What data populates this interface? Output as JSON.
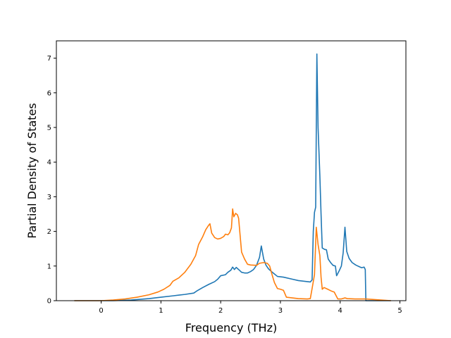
{
  "chart_data": {
    "type": "line",
    "title": "",
    "xlabel": "Frequency (THz)",
    "ylabel": "Partial Density of States",
    "xlim": [
      -0.75,
      5.1
    ],
    "ylim": [
      0,
      7.5
    ],
    "xticks": [
      0,
      1,
      2,
      3,
      4,
      5
    ],
    "xtick_labels": [
      "0",
      "1",
      "2",
      "3",
      "4",
      "5"
    ],
    "yticks": [
      0,
      1,
      2,
      3,
      4,
      5,
      6,
      7
    ],
    "ytick_labels": [
      "0",
      "1",
      "2",
      "3",
      "4",
      "5",
      "6",
      "7"
    ],
    "grid": false,
    "legend": false,
    "series": [
      {
        "color": "#1f77b4",
        "points": [
          [
            -0.45,
            0
          ],
          [
            0.2,
            0.0
          ],
          [
            0.5,
            0.02
          ],
          [
            0.8,
            0.06
          ],
          [
            1.0,
            0.1
          ],
          [
            1.2,
            0.14
          ],
          [
            1.4,
            0.18
          ],
          [
            1.55,
            0.22
          ],
          [
            1.6,
            0.28
          ],
          [
            1.7,
            0.38
          ],
          [
            1.8,
            0.47
          ],
          [
            1.9,
            0.55
          ],
          [
            1.95,
            0.62
          ],
          [
            2.0,
            0.72
          ],
          [
            2.08,
            0.75
          ],
          [
            2.12,
            0.82
          ],
          [
            2.17,
            0.88
          ],
          [
            2.2,
            0.97
          ],
          [
            2.23,
            0.9
          ],
          [
            2.26,
            0.96
          ],
          [
            2.3,
            0.9
          ],
          [
            2.35,
            0.82
          ],
          [
            2.4,
            0.8
          ],
          [
            2.45,
            0.8
          ],
          [
            2.5,
            0.84
          ],
          [
            2.55,
            0.9
          ],
          [
            2.6,
            1.02
          ],
          [
            2.65,
            1.25
          ],
          [
            2.68,
            1.58
          ],
          [
            2.72,
            1.2
          ],
          [
            2.76,
            1.02
          ],
          [
            2.8,
            0.92
          ],
          [
            2.85,
            0.84
          ],
          [
            2.9,
            0.77
          ],
          [
            2.95,
            0.7
          ],
          [
            3.05,
            0.68
          ],
          [
            3.2,
            0.62
          ],
          [
            3.3,
            0.58
          ],
          [
            3.4,
            0.56
          ],
          [
            3.5,
            0.54
          ],
          [
            3.53,
            0.6
          ],
          [
            3.55,
            2.0
          ],
          [
            3.57,
            2.55
          ],
          [
            3.59,
            2.7
          ],
          [
            3.61,
            7.12
          ],
          [
            3.63,
            5.0
          ],
          [
            3.66,
            3.6
          ],
          [
            3.68,
            2.5
          ],
          [
            3.7,
            1.52
          ],
          [
            3.74,
            1.48
          ],
          [
            3.77,
            1.47
          ],
          [
            3.8,
            1.2
          ],
          [
            3.84,
            1.1
          ],
          [
            3.88,
            1.02
          ],
          [
            3.92,
            1.0
          ],
          [
            3.94,
            0.72
          ],
          [
            3.98,
            0.85
          ],
          [
            4.02,
            1.0
          ],
          [
            4.05,
            1.38
          ],
          [
            4.08,
            2.12
          ],
          [
            4.11,
            1.42
          ],
          [
            4.15,
            1.22
          ],
          [
            4.2,
            1.1
          ],
          [
            4.26,
            1.03
          ],
          [
            4.32,
            0.98
          ],
          [
            4.36,
            0.95
          ],
          [
            4.4,
            0.97
          ],
          [
            4.42,
            0.9
          ],
          [
            4.43,
            0.0
          ],
          [
            4.85,
            0
          ]
        ]
      },
      {
        "color": "#ff7f0e",
        "points": [
          [
            -0.45,
            0
          ],
          [
            0.0,
            0.0
          ],
          [
            0.2,
            0.02
          ],
          [
            0.4,
            0.05
          ],
          [
            0.6,
            0.1
          ],
          [
            0.8,
            0.17
          ],
          [
            0.95,
            0.25
          ],
          [
            1.05,
            0.33
          ],
          [
            1.15,
            0.44
          ],
          [
            1.2,
            0.56
          ],
          [
            1.3,
            0.66
          ],
          [
            1.4,
            0.82
          ],
          [
            1.5,
            1.05
          ],
          [
            1.58,
            1.3
          ],
          [
            1.63,
            1.62
          ],
          [
            1.7,
            1.85
          ],
          [
            1.75,
            2.05
          ],
          [
            1.8,
            2.18
          ],
          [
            1.82,
            2.22
          ],
          [
            1.85,
            1.95
          ],
          [
            1.9,
            1.82
          ],
          [
            1.95,
            1.78
          ],
          [
            2.0,
            1.8
          ],
          [
            2.05,
            1.85
          ],
          [
            2.08,
            1.92
          ],
          [
            2.12,
            1.9
          ],
          [
            2.15,
            1.96
          ],
          [
            2.18,
            2.1
          ],
          [
            2.2,
            2.65
          ],
          [
            2.22,
            2.42
          ],
          [
            2.25,
            2.52
          ],
          [
            2.28,
            2.48
          ],
          [
            2.3,
            2.38
          ],
          [
            2.35,
            1.4
          ],
          [
            2.4,
            1.2
          ],
          [
            2.45,
            1.05
          ],
          [
            2.5,
            1.03
          ],
          [
            2.6,
            1.02
          ],
          [
            2.65,
            1.08
          ],
          [
            2.72,
            1.1
          ],
          [
            2.78,
            1.08
          ],
          [
            2.82,
            1.0
          ],
          [
            2.86,
            0.75
          ],
          [
            2.9,
            0.52
          ],
          [
            2.95,
            0.35
          ],
          [
            3.0,
            0.33
          ],
          [
            3.05,
            0.3
          ],
          [
            3.1,
            0.1
          ],
          [
            3.2,
            0.08
          ],
          [
            3.3,
            0.06
          ],
          [
            3.45,
            0.05
          ],
          [
            3.5,
            0.06
          ],
          [
            3.53,
            0.35
          ],
          [
            3.57,
            0.75
          ],
          [
            3.6,
            2.12
          ],
          [
            3.63,
            1.62
          ],
          [
            3.66,
            1.3
          ],
          [
            3.68,
            0.68
          ],
          [
            3.7,
            0.33
          ],
          [
            3.73,
            0.38
          ],
          [
            3.78,
            0.34
          ],
          [
            3.85,
            0.28
          ],
          [
            3.9,
            0.25
          ],
          [
            3.93,
            0.15
          ],
          [
            3.96,
            0.05
          ],
          [
            4.02,
            0.05
          ],
          [
            4.08,
            0.08
          ],
          [
            4.12,
            0.06
          ],
          [
            4.25,
            0.05
          ],
          [
            4.43,
            0.05
          ],
          [
            4.85,
            0
          ]
        ]
      }
    ]
  }
}
